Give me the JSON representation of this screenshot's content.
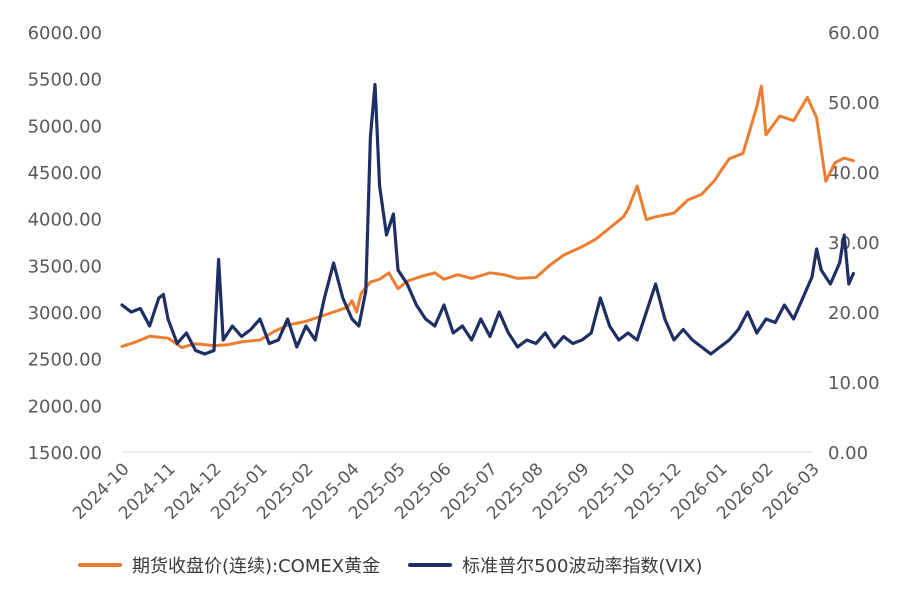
{
  "chart_data": {
    "type": "line",
    "x_labels": [
      "2024-10",
      "2024-11",
      "2024-12",
      "2025-01",
      "2025-02",
      "2025-04",
      "2025-05",
      "2025-06",
      "2025-07",
      "2025-08",
      "2025-09",
      "2025-10",
      "2025-12",
      "2026-01",
      "2026-02",
      "2026-03"
    ],
    "left_axis": {
      "ylim": [
        1500,
        6000
      ],
      "ticks": [
        "6000.00",
        "5500.00",
        "5000.00",
        "4500.00",
        "4000.00",
        "3500.00",
        "3000.00",
        "2500.00",
        "2000.00",
        "1500.00"
      ]
    },
    "right_axis": {
      "ylim": [
        0,
        60
      ],
      "ticks": [
        "60.00",
        "50.00",
        "40.00",
        "30.00",
        "20.00",
        "10.00",
        "0.00"
      ]
    },
    "grid": false,
    "legend_position": "bottom",
    "series": [
      {
        "name": "期货收盘价(连续):COMEX黄金",
        "axis": "left",
        "color": "#ED7D31",
        "values": [
          [
            0,
            2630
          ],
          [
            0.3,
            2680
          ],
          [
            0.6,
            2740
          ],
          [
            1,
            2720
          ],
          [
            1.3,
            2620
          ],
          [
            1.6,
            2660
          ],
          [
            2,
            2640
          ],
          [
            2.3,
            2650
          ],
          [
            2.6,
            2680
          ],
          [
            3,
            2700
          ],
          [
            3.3,
            2790
          ],
          [
            3.6,
            2860
          ],
          [
            4,
            2900
          ],
          [
            4.3,
            2950
          ],
          [
            4.6,
            3000
          ],
          [
            4.9,
            3050
          ],
          [
            5,
            3120
          ],
          [
            5.1,
            3000
          ],
          [
            5.2,
            3200
          ],
          [
            5.4,
            3320
          ],
          [
            5.6,
            3350
          ],
          [
            5.8,
            3420
          ],
          [
            6,
            3250
          ],
          [
            6.2,
            3330
          ],
          [
            6.5,
            3380
          ],
          [
            6.8,
            3420
          ],
          [
            7,
            3350
          ],
          [
            7.3,
            3400
          ],
          [
            7.6,
            3360
          ],
          [
            8,
            3420
          ],
          [
            8.3,
            3400
          ],
          [
            8.6,
            3360
          ],
          [
            9,
            3370
          ],
          [
            9.3,
            3500
          ],
          [
            9.6,
            3610
          ],
          [
            10,
            3700
          ],
          [
            10.3,
            3780
          ],
          [
            10.6,
            3900
          ],
          [
            10.9,
            4020
          ],
          [
            11,
            4100
          ],
          [
            11.2,
            4350
          ],
          [
            11.4,
            3990
          ],
          [
            11.6,
            4020
          ],
          [
            12,
            4060
          ],
          [
            12.3,
            4200
          ],
          [
            12.6,
            4260
          ],
          [
            12.9,
            4420
          ],
          [
            13,
            4500
          ],
          [
            13.2,
            4640
          ],
          [
            13.5,
            4700
          ],
          [
            13.8,
            5200
          ],
          [
            13.9,
            5420
          ],
          [
            14,
            4900
          ],
          [
            14.3,
            5100
          ],
          [
            14.6,
            5050
          ],
          [
            14.9,
            5300
          ],
          [
            15.1,
            5080
          ],
          [
            15.3,
            4400
          ],
          [
            15.5,
            4600
          ],
          [
            15.7,
            4650
          ],
          [
            15.9,
            4620
          ]
        ]
      },
      {
        "name": "标准普尔500波动率指数(VIX)",
        "axis": "right",
        "color": "#1F2F64",
        "values": [
          [
            0,
            21
          ],
          [
            0.2,
            20
          ],
          [
            0.4,
            20.5
          ],
          [
            0.6,
            18
          ],
          [
            0.8,
            22
          ],
          [
            0.9,
            22.5
          ],
          [
            1,
            19
          ],
          [
            1.2,
            15.5
          ],
          [
            1.4,
            17
          ],
          [
            1.6,
            14.5
          ],
          [
            1.8,
            14
          ],
          [
            2,
            14.5
          ],
          [
            2.1,
            27.5
          ],
          [
            2.2,
            16
          ],
          [
            2.4,
            18
          ],
          [
            2.6,
            16.5
          ],
          [
            2.8,
            17.5
          ],
          [
            3,
            19
          ],
          [
            3.2,
            15.5
          ],
          [
            3.4,
            16
          ],
          [
            3.6,
            19
          ],
          [
            3.8,
            15
          ],
          [
            4,
            18
          ],
          [
            4.2,
            16
          ],
          [
            4.4,
            22
          ],
          [
            4.6,
            27
          ],
          [
            4.8,
            22
          ],
          [
            5,
            19
          ],
          [
            5.15,
            18
          ],
          [
            5.3,
            23
          ],
          [
            5.4,
            45
          ],
          [
            5.5,
            52.5
          ],
          [
            5.6,
            38
          ],
          [
            5.75,
            31
          ],
          [
            5.9,
            34
          ],
          [
            6,
            26
          ],
          [
            6.2,
            24
          ],
          [
            6.4,
            21
          ],
          [
            6.6,
            19
          ],
          [
            6.8,
            18
          ],
          [
            7,
            21
          ],
          [
            7.2,
            17
          ],
          [
            7.4,
            18
          ],
          [
            7.6,
            16
          ],
          [
            7.8,
            19
          ],
          [
            8,
            16.5
          ],
          [
            8.2,
            20
          ],
          [
            8.4,
            17
          ],
          [
            8.6,
            15
          ],
          [
            8.8,
            16
          ],
          [
            9,
            15.5
          ],
          [
            9.2,
            17
          ],
          [
            9.4,
            15
          ],
          [
            9.6,
            16.5
          ],
          [
            9.8,
            15.5
          ],
          [
            10,
            16
          ],
          [
            10.2,
            17
          ],
          [
            10.4,
            22
          ],
          [
            10.6,
            18
          ],
          [
            10.8,
            16
          ],
          [
            11,
            17
          ],
          [
            11.2,
            16
          ],
          [
            11.4,
            20
          ],
          [
            11.6,
            24
          ],
          [
            11.8,
            19
          ],
          [
            12,
            16
          ],
          [
            12.2,
            17.5
          ],
          [
            12.4,
            16
          ],
          [
            12.6,
            15
          ],
          [
            12.8,
            14
          ],
          [
            13,
            15
          ],
          [
            13.2,
            16
          ],
          [
            13.4,
            17.5
          ],
          [
            13.6,
            20
          ],
          [
            13.8,
            17
          ],
          [
            14,
            19
          ],
          [
            14.2,
            18.5
          ],
          [
            14.4,
            21
          ],
          [
            14.6,
            19
          ],
          [
            14.8,
            22
          ],
          [
            15,
            25
          ],
          [
            15.1,
            29
          ],
          [
            15.2,
            26
          ],
          [
            15.4,
            24
          ],
          [
            15.6,
            27
          ],
          [
            15.7,
            31
          ],
          [
            15.8,
            24
          ],
          [
            15.9,
            25.5
          ]
        ]
      }
    ]
  }
}
